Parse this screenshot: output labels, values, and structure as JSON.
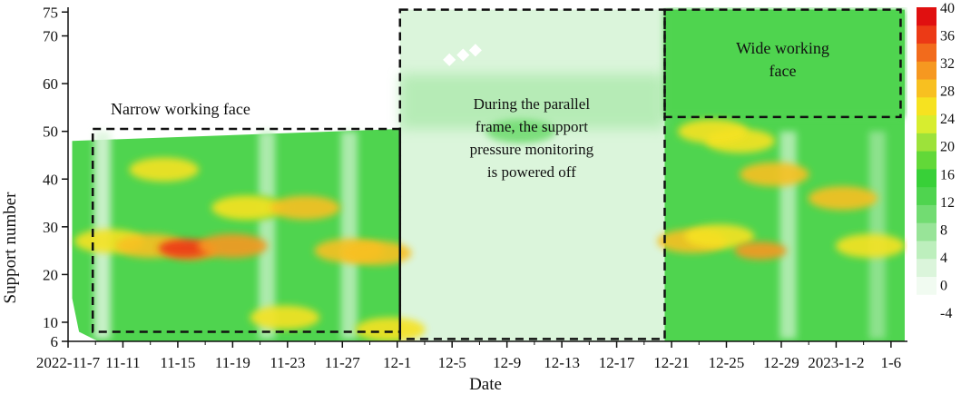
{
  "chart_data": {
    "type": "heatmap",
    "xlabel": "Date",
    "ylabel": "Support number",
    "x_tick_labels": [
      "2022-11-7",
      "11-11",
      "11-15",
      "11-19",
      "11-23",
      "11-27",
      "12-1",
      "12-5",
      "12-9",
      "12-13",
      "12-17",
      "12-21",
      "12-25",
      "12-29",
      "2023-1-2",
      "1-6"
    ],
    "x_ticks_day": [
      0,
      4,
      8,
      12,
      16,
      20,
      24,
      28,
      32,
      36,
      40,
      44,
      48,
      52,
      56,
      60
    ],
    "xlim_day": [
      0,
      61.2
    ],
    "y_ticks": [
      6,
      10,
      20,
      30,
      40,
      50,
      60,
      70,
      75
    ],
    "ylim": [
      6,
      76
    ],
    "colorbar": {
      "ticks": [
        40,
        36,
        32,
        28,
        24,
        20,
        16,
        12,
        8,
        4,
        0,
        -4
      ],
      "range": [
        -4,
        40
      ],
      "colors": [
        "#ffffff",
        "#f1fbf1",
        "#dbf5db",
        "#bdefbd",
        "#98e498",
        "#72dc72",
        "#4fd44f",
        "#38d038",
        "#62d838",
        "#9de23a",
        "#d7ed2f",
        "#f6e220",
        "#f8c020",
        "#f69820",
        "#f26b1c",
        "#ec3a16",
        "#e01010"
      ]
    },
    "regions": [
      {
        "label": "Narrow working face",
        "day_range": [
          1.8,
          24.2
        ],
        "support_range": [
          8,
          50.5
        ]
      },
      {
        "label": "During the parallel frame, the support pressure monitoring is powered off",
        "day_range": [
          24.2,
          43.5
        ],
        "support_range": [
          6.5,
          75.5
        ]
      },
      {
        "label": "Wide working face",
        "day_range": [
          43.5,
          60.7
        ],
        "support_range": [
          53,
          75.5
        ]
      }
    ],
    "blobs": [
      {
        "day": 13.5,
        "support": 34,
        "value": 19
      },
      {
        "day": 33,
        "support": 50,
        "value": 9
      },
      {
        "day": 3,
        "support": 27,
        "value": 25
      },
      {
        "day": 6,
        "support": 26,
        "value": 28
      },
      {
        "day": 9,
        "support": 25,
        "value": 33
      },
      {
        "day": 8.5,
        "support": 25.5,
        "value": 37
      },
      {
        "day": 12,
        "support": 26,
        "value": 31
      },
      {
        "day": 13,
        "support": 34,
        "value": 26
      },
      {
        "day": 17.3,
        "support": 34,
        "value": 29
      },
      {
        "day": 20.5,
        "support": 25,
        "value": 30
      },
      {
        "day": 22.5,
        "support": 24.5,
        "value": 28
      },
      {
        "day": 15.8,
        "support": 11,
        "value": 26
      },
      {
        "day": 23.5,
        "support": 8.5,
        "value": 27
      },
      {
        "day": 7,
        "support": 42,
        "value": 25
      },
      {
        "day": 45.5,
        "support": 27,
        "value": 30
      },
      {
        "day": 47.5,
        "support": 28,
        "value": 27
      },
      {
        "day": 50.5,
        "support": 25,
        "value": 33
      },
      {
        "day": 49,
        "support": 48,
        "value": 27
      },
      {
        "day": 56.5,
        "support": 36,
        "value": 28
      },
      {
        "day": 58.5,
        "support": 26,
        "value": 26
      },
      {
        "day": 51.5,
        "support": 41,
        "value": 28
      },
      {
        "day": 47,
        "support": 50,
        "value": 26
      }
    ],
    "bands": [
      {
        "day": 2.5,
        "value": 2
      },
      {
        "day": 14.5,
        "value": 4
      },
      {
        "day": 20.5,
        "value": 5
      },
      {
        "day": 52.5,
        "value": 3
      },
      {
        "day": 59,
        "value": 6
      }
    ]
  }
}
